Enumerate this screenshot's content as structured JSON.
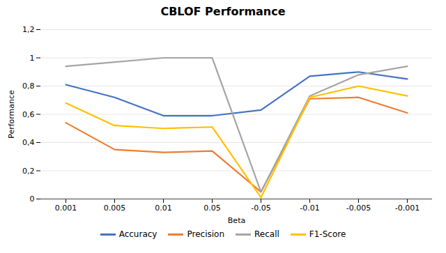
{
  "chart_data": {
    "type": "line",
    "title": "CBLOF Performance",
    "xlabel": "Beta",
    "ylabel": "Performance",
    "categories": [
      "0.001",
      "0.005",
      "0.01",
      "0.05",
      "-0.05",
      "-0.01",
      "-0.005",
      "-0.001"
    ],
    "series": [
      {
        "name": "Accuracy",
        "color": "#4472C4",
        "values": [
          0.81,
          0.72,
          0.59,
          0.59,
          0.63,
          0.87,
          0.9,
          0.85
        ]
      },
      {
        "name": "Precision",
        "color": "#ED7D31",
        "values": [
          0.54,
          0.35,
          0.33,
          0.34,
          0.05,
          0.71,
          0.72,
          0.61
        ]
      },
      {
        "name": "Recall",
        "color": "#A5A5A5",
        "values": [
          0.94,
          0.97,
          1.0,
          1.0,
          0.05,
          0.73,
          0.88,
          0.94
        ]
      },
      {
        "name": "F1-Score",
        "color": "#FFC000",
        "values": [
          0.68,
          0.52,
          0.5,
          0.51,
          0.01,
          0.72,
          0.8,
          0.73
        ]
      }
    ],
    "ylim": [
      0,
      1.2
    ],
    "yticks": [
      0,
      {
        "value": 0.2,
        "label": "0,2"
      },
      {
        "value": 0.4,
        "label": "0,4"
      },
      {
        "value": 0.6,
        "label": "0,6"
      },
      {
        "value": 0.8,
        "label": "0,8"
      },
      1,
      {
        "value": 1.2,
        "label": "1,2"
      }
    ],
    "grid": true,
    "legend": "bottom"
  }
}
